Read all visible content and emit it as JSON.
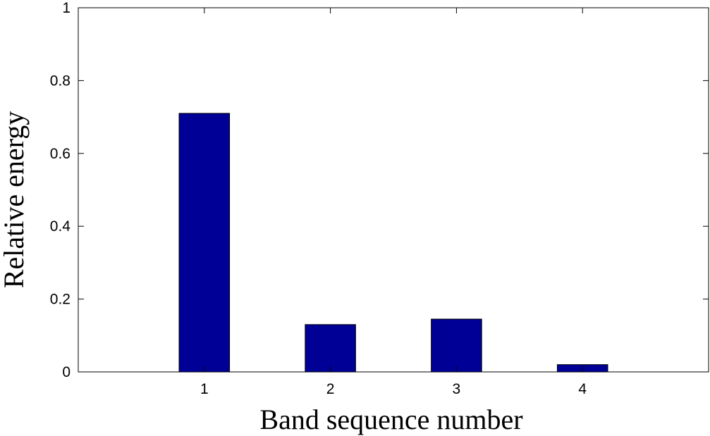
{
  "chart_data": {
    "type": "bar",
    "categories": [
      "1",
      "2",
      "3",
      "4"
    ],
    "values": [
      0.71,
      0.13,
      0.145,
      0.02
    ],
    "xlabel": "Band sequence number",
    "ylabel": "Relative energy",
    "xlim": [
      0,
      5
    ],
    "ylim": [
      0,
      1
    ],
    "yticks": [
      "0",
      "0.2",
      "0.4",
      "0.6",
      "0.8",
      "1"
    ],
    "ytick_values": [
      0,
      0.2,
      0.4,
      0.6,
      0.8,
      1
    ],
    "grid": false,
    "legend": "none",
    "bar_color": "#000096",
    "bar_edge_color": "#000000"
  }
}
